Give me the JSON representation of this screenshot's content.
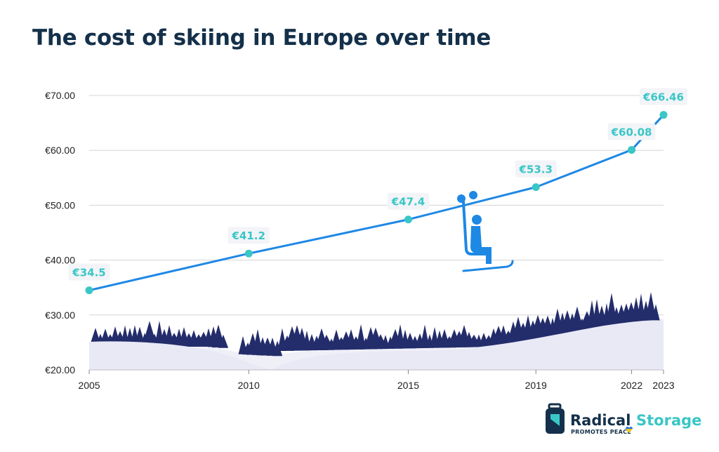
{
  "chart_data": {
    "type": "line",
    "title": "The cost of skiing in Europe over time",
    "xlabel": "",
    "ylabel": "",
    "x": [
      2005,
      2010,
      2015,
      2019,
      2022,
      2023
    ],
    "ylim": [
      20,
      70
    ],
    "yticks": [
      "€20.00",
      "€30.00",
      "€40.00",
      "€50.00",
      "€60.00",
      "€70.00"
    ],
    "ytick_values": [
      20,
      30,
      40,
      50,
      60,
      70
    ],
    "series": [
      {
        "name": "",
        "values": [
          34.5,
          41.2,
          47.4,
          53.3,
          60.08,
          66.46
        ],
        "labels": [
          "€34.5",
          "€41.2",
          "€47.4",
          "€53.3",
          "€60.08",
          "€66.46"
        ],
        "color": "#1e88e5",
        "marker_color": "#3ac6c6"
      }
    ],
    "grid": true,
    "legend": "none"
  },
  "branding": {
    "name_part1": "Radical",
    "name_part2": "Storage",
    "tagline": "PROMOTES PEACE",
    "color_dark": "#14304a",
    "color_accent": "#3ac6c6"
  },
  "decorations": {
    "forest_color": "#232d6b",
    "snow_color": "#e9e9f6",
    "skier_color": "#1e88e5",
    "icons": [
      "ski-lift-chair-icon",
      "skier-icon",
      "luggage-icon",
      "ukraine-heart-icon"
    ]
  }
}
